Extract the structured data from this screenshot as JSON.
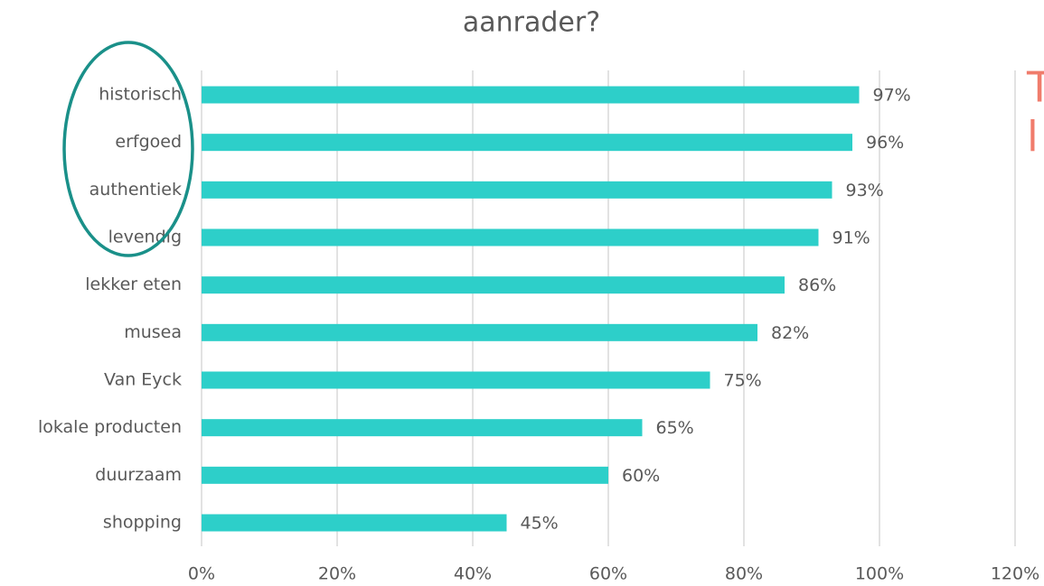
{
  "chart_data": {
    "type": "bar",
    "orientation": "horizontal",
    "title": "aanrader?",
    "categories": [
      "historisch",
      "erfgoed",
      "authentiek",
      "levendig",
      "lekker eten",
      "musea",
      "Van Eyck",
      "lokale producten",
      "duurzaam",
      "shopping"
    ],
    "values": [
      97,
      96,
      93,
      91,
      86,
      82,
      75,
      65,
      60,
      45
    ],
    "value_labels": [
      "97%",
      "96%",
      "93%",
      "91%",
      "86%",
      "82%",
      "75%",
      "65%",
      "60%",
      "45%"
    ],
    "color": "#2dcfc9",
    "xlim": [
      0,
      120
    ],
    "xticks": [
      {
        "value": 0,
        "label": "0%"
      },
      {
        "value": 20,
        "label": "20%"
      },
      {
        "value": 40,
        "label": "40%"
      },
      {
        "value": 60,
        "label": "60%"
      },
      {
        "value": 80,
        "label": "80%"
      },
      {
        "value": 100,
        "label": "100%"
      },
      {
        "value": 120,
        "label": "120%"
      }
    ],
    "grid": true,
    "annotations": [
      "T",
      "l"
    ]
  }
}
